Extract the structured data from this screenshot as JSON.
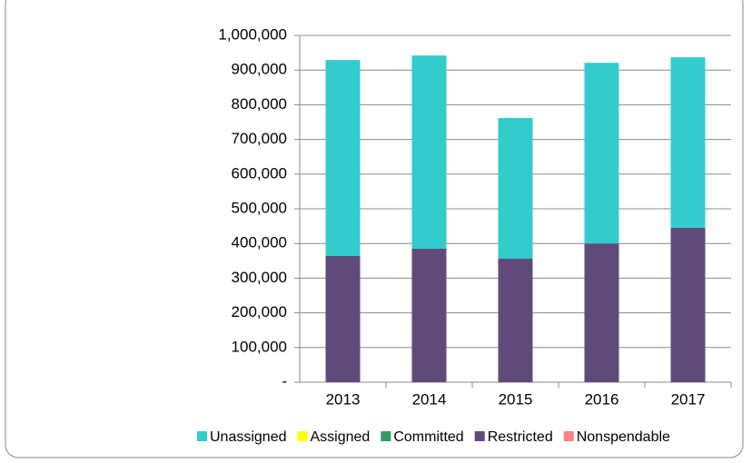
{
  "chart_data": {
    "type": "stacked-bar",
    "categories": [
      "2013",
      "2014",
      "2015",
      "2016",
      "2017"
    ],
    "series": [
      {
        "name": "Unassigned",
        "color": "#33cccc",
        "values": [
          565000,
          557000,
          406000,
          521000,
          492000
        ]
      },
      {
        "name": "Assigned",
        "color": "#ffff00",
        "values": [
          0,
          0,
          0,
          0,
          0
        ]
      },
      {
        "name": "Committed",
        "color": "#339966",
        "values": [
          0,
          0,
          0,
          0,
          0
        ]
      },
      {
        "name": "Restricted",
        "color": "#604a7b",
        "values": [
          364000,
          385000,
          356000,
          400000,
          445000
        ]
      },
      {
        "name": "Nonspendable",
        "color": "#ff8080",
        "values": [
          0,
          0,
          0,
          0,
          0
        ]
      }
    ],
    "ylim": [
      0,
      1000000
    ],
    "yticks": [
      {
        "value": 0,
        "label": "-"
      },
      {
        "value": 100000,
        "label": "100,000"
      },
      {
        "value": 200000,
        "label": "200,000"
      },
      {
        "value": 300000,
        "label": "300,000"
      },
      {
        "value": 400000,
        "label": "400,000"
      },
      {
        "value": 500000,
        "label": "500,000"
      },
      {
        "value": 600000,
        "label": "600,000"
      },
      {
        "value": 700000,
        "label": "700,000"
      },
      {
        "value": 800000,
        "label": "800,000"
      },
      {
        "value": 900000,
        "label": "900,000"
      },
      {
        "value": 1000000,
        "label": "1,000,000"
      }
    ],
    "grid": true,
    "legend": "bottom"
  }
}
